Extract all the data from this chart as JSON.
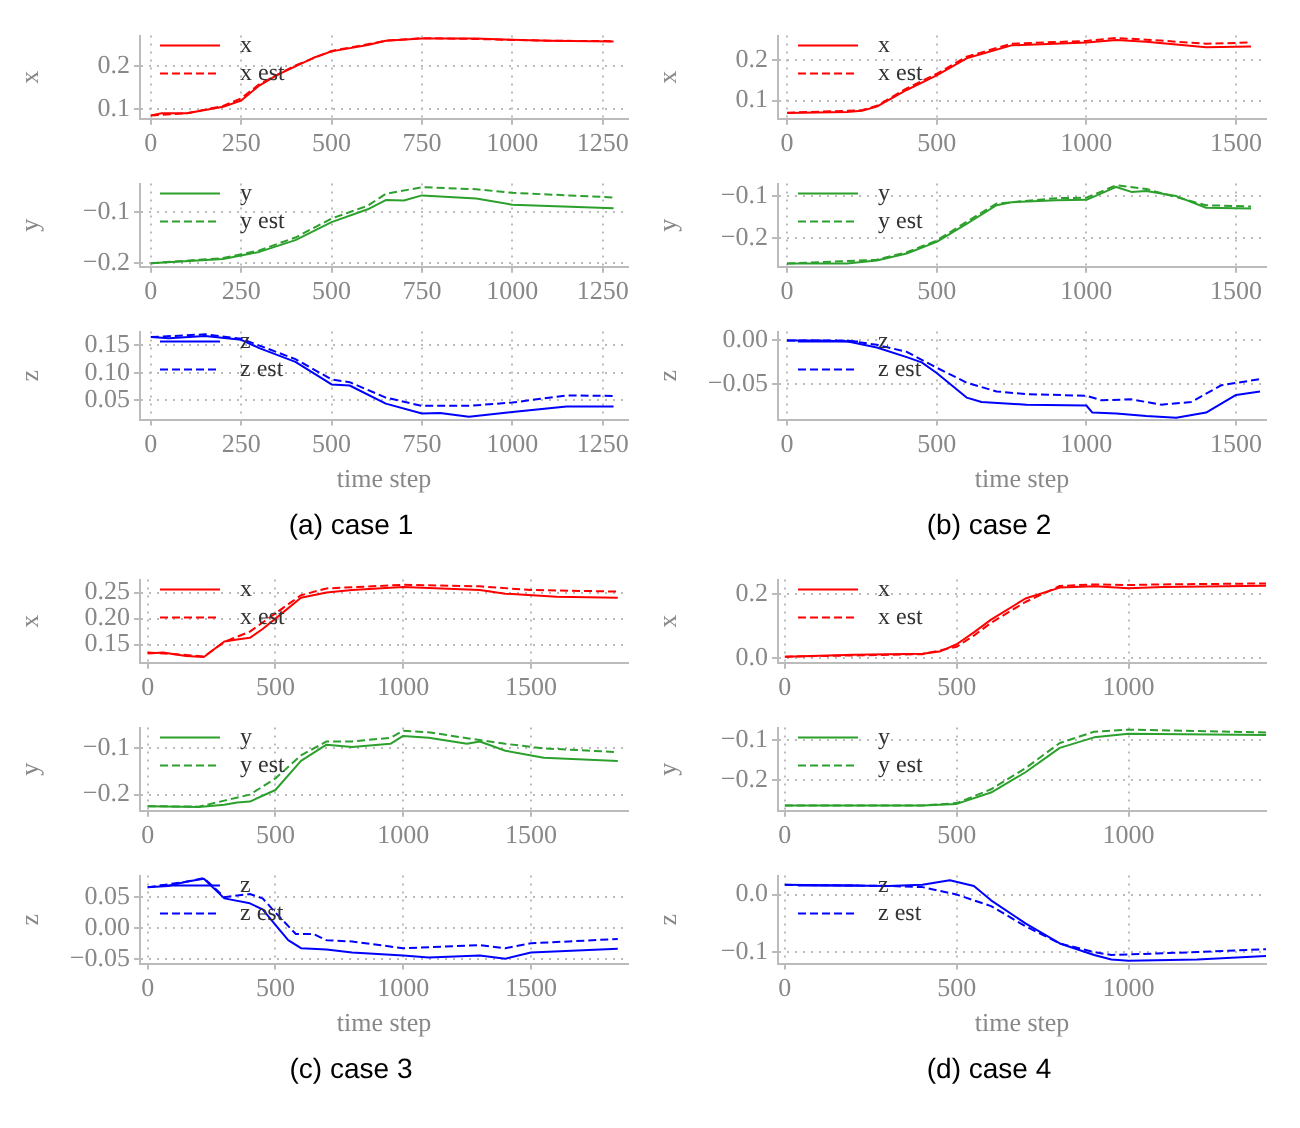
{
  "chart_data": [
    {
      "type": "line",
      "ylabel": "x",
      "xlim": [
        -30,
        1320
      ],
      "xticks": [
        0,
        250,
        500,
        750,
        1000,
        1250
      ],
      "ylim": [
        0.077,
        0.272
      ],
      "yticks": [
        {
          "value": 0.1,
          "label": "0.1"
        },
        {
          "value": 0.2,
          "label": "0.2"
        }
      ],
      "grid": true,
      "legend": "top left",
      "series": [
        {
          "name": "x",
          "color": "#ff0000",
          "line_style": "solid",
          "x": [
            0,
            30,
            100,
            200,
            250,
            300,
            350,
            400,
            450,
            500,
            600,
            650,
            750,
            900,
            1000,
            1100,
            1280
          ],
          "values": [
            0.085,
            0.09,
            0.09,
            0.105,
            0.12,
            0.155,
            0.18,
            0.2,
            0.22,
            0.235,
            0.25,
            0.26,
            0.265,
            0.265,
            0.262,
            0.26,
            0.258
          ]
        },
        {
          "name": "x est",
          "color": "#ff0000",
          "line_style": "dashed",
          "x": [
            0,
            100,
            200,
            250,
            300,
            400,
            500,
            650,
            750,
            900,
            1100,
            1280
          ],
          "values": [
            0.085,
            0.09,
            0.107,
            0.125,
            0.158,
            0.202,
            0.236,
            0.26,
            0.266,
            0.264,
            0.26,
            0.259
          ]
        }
      ]
    },
    {
      "type": "line",
      "ylabel": "y",
      "xlim": [
        -30,
        1320
      ],
      "xticks": [
        0,
        250,
        500,
        750,
        1000,
        1250
      ],
      "ylim": [
        -0.207,
        -0.045
      ],
      "yticks": [
        {
          "value": -0.1,
          "label": "−0.1"
        },
        {
          "value": -0.2,
          "label": "−0.2"
        }
      ],
      "grid": true,
      "legend": "top left",
      "series": [
        {
          "name": "y",
          "color": "#2ca02c",
          "line_style": "solid",
          "x": [
            0,
            200,
            300,
            400,
            500,
            600,
            650,
            700,
            750,
            900,
            1000,
            1280
          ],
          "values": [
            -0.2,
            -0.192,
            -0.178,
            -0.155,
            -0.12,
            -0.095,
            -0.077,
            -0.078,
            -0.068,
            -0.074,
            -0.086,
            -0.093
          ]
        },
        {
          "name": "y est",
          "color": "#2ca02c",
          "line_style": "dashed",
          "x": [
            0,
            200,
            300,
            400,
            500,
            600,
            650,
            750,
            900,
            1000,
            1280
          ],
          "values": [
            -0.2,
            -0.19,
            -0.175,
            -0.15,
            -0.113,
            -0.088,
            -0.065,
            -0.052,
            -0.056,
            -0.063,
            -0.072
          ]
        }
      ]
    },
    {
      "type": "line",
      "ylabel": "z",
      "xlabel": "time step",
      "annotations": [
        "(a) case 1"
      ],
      "xlim": [
        -30,
        1320
      ],
      "xticks": [
        0,
        250,
        500,
        750,
        1000,
        1250
      ],
      "ylim": [
        0.015,
        0.175
      ],
      "yticks": [
        {
          "value": 0.05,
          "label": "0.05"
        },
        {
          "value": 0.1,
          "label": "0.10"
        },
        {
          "value": 0.15,
          "label": "0.15"
        }
      ],
      "grid": true,
      "legend": "top left",
      "series": [
        {
          "name": "z",
          "color": "#0000ff",
          "line_style": "solid",
          "x": [
            0,
            50,
            150,
            250,
            300,
            400,
            500,
            550,
            650,
            750,
            800,
            880,
            1000,
            1150,
            1280
          ],
          "values": [
            0.165,
            0.163,
            0.167,
            0.16,
            0.145,
            0.12,
            0.079,
            0.077,
            0.044,
            0.026,
            0.027,
            0.02,
            0.029,
            0.039,
            0.039
          ]
        },
        {
          "name": "z est",
          "color": "#0000ff",
          "line_style": "dashed",
          "x": [
            0,
            150,
            250,
            400,
            500,
            550,
            650,
            750,
            880,
            1000,
            1150,
            1280
          ],
          "values": [
            0.165,
            0.17,
            0.162,
            0.125,
            0.088,
            0.083,
            0.055,
            0.04,
            0.04,
            0.046,
            0.059,
            0.058
          ]
        }
      ]
    },
    {
      "type": "line",
      "ylabel": "x",
      "xlim": [
        -30,
        1600
      ],
      "xticks": [
        0,
        500,
        1000,
        1500
      ],
      "ylim": [
        0.055,
        0.26
      ],
      "yticks": [
        {
          "value": 0.1,
          "label": "0.1"
        },
        {
          "value": 0.2,
          "label": "0.2"
        }
      ],
      "grid": true,
      "legend": "top left",
      "series": [
        {
          "name": "x",
          "color": "#ff0000",
          "line_style": "solid",
          "x": [
            0,
            200,
            250,
            300,
            400,
            500,
            600,
            750,
            1000,
            1100,
            1200,
            1400,
            1550
          ],
          "values": [
            0.069,
            0.072,
            0.075,
            0.085,
            0.126,
            0.162,
            0.204,
            0.236,
            0.243,
            0.249,
            0.245,
            0.231,
            0.233
          ]
        },
        {
          "name": "x est",
          "color": "#ff0000",
          "line_style": "dashed",
          "x": [
            0,
            250,
            300,
            400,
            500,
            600,
            750,
            1000,
            1100,
            1200,
            1400,
            1550
          ],
          "values": [
            0.07,
            0.076,
            0.087,
            0.13,
            0.166,
            0.208,
            0.24,
            0.247,
            0.254,
            0.25,
            0.24,
            0.243
          ]
        }
      ]
    },
    {
      "type": "line",
      "ylabel": "y",
      "xlim": [
        -30,
        1600
      ],
      "xticks": [
        0,
        500,
        1000,
        1500
      ],
      "ylim": [
        -0.27,
        -0.07
      ],
      "yticks": [
        {
          "value": -0.1,
          "label": "−0.1"
        },
        {
          "value": -0.2,
          "label": "−0.2"
        }
      ],
      "grid": true,
      "legend": "top left",
      "series": [
        {
          "name": "y",
          "color": "#2ca02c",
          "line_style": "solid",
          "x": [
            0,
            200,
            300,
            400,
            500,
            600,
            700,
            750,
            900,
            1000,
            1100,
            1150,
            1200,
            1300,
            1400,
            1550
          ],
          "values": [
            -0.262,
            -0.262,
            -0.255,
            -0.238,
            -0.21,
            -0.167,
            -0.122,
            -0.115,
            -0.11,
            -0.109,
            -0.078,
            -0.09,
            -0.088,
            -0.1,
            -0.128,
            -0.13
          ]
        },
        {
          "name": "y est",
          "color": "#2ca02c",
          "line_style": "dashed",
          "x": [
            0,
            300,
            400,
            500,
            600,
            700,
            900,
            1000,
            1100,
            1200,
            1400,
            1550
          ],
          "values": [
            -0.262,
            -0.253,
            -0.235,
            -0.207,
            -0.162,
            -0.118,
            -0.105,
            -0.104,
            -0.074,
            -0.083,
            -0.122,
            -0.125
          ]
        }
      ]
    },
    {
      "type": "line",
      "ylabel": "z",
      "xlabel": "time step",
      "annotations": [
        "(b) case 2"
      ],
      "xlim": [
        -30,
        1600
      ],
      "xticks": [
        0,
        500,
        1000,
        1500
      ],
      "ylim": [
        -0.09,
        0.01
      ],
      "yticks": [
        {
          "value": 0,
          "label": "0.00"
        },
        {
          "value": -0.05,
          "label": "−0.05"
        }
      ],
      "grid": true,
      "legend": "top left",
      "series": [
        {
          "name": "z",
          "color": "#0000ff",
          "line_style": "solid",
          "x": [
            0,
            100,
            200,
            300,
            400,
            450,
            500,
            600,
            650,
            800,
            1000,
            1020,
            1100,
            1200,
            1300,
            1400,
            1500,
            1580
          ],
          "values": [
            0,
            0,
            -0.001,
            -0.008,
            -0.019,
            -0.025,
            -0.037,
            -0.065,
            -0.07,
            -0.073,
            -0.074,
            -0.082,
            -0.083,
            -0.086,
            -0.088,
            -0.082,
            -0.062,
            -0.058
          ]
        },
        {
          "name": "z est",
          "color": "#0000ff",
          "line_style": "dashed",
          "x": [
            0,
            200,
            300,
            400,
            500,
            600,
            700,
            800,
            1000,
            1050,
            1150,
            1250,
            1350,
            1450,
            1580
          ],
          "values": [
            0,
            0,
            -0.005,
            -0.013,
            -0.031,
            -0.048,
            -0.058,
            -0.061,
            -0.063,
            -0.068,
            -0.067,
            -0.073,
            -0.07,
            -0.051,
            -0.044
          ]
        }
      ]
    },
    {
      "type": "line",
      "ylabel": "x",
      "xlim": [
        -30,
        1880
      ],
      "xticks": [
        0,
        500,
        1000,
        1500
      ],
      "ylim": [
        0.115,
        0.275
      ],
      "yticks": [
        {
          "value": 0.15,
          "label": "0.15"
        },
        {
          "value": 0.2,
          "label": "0.20"
        },
        {
          "value": 0.25,
          "label": "0.25"
        }
      ],
      "grid": true,
      "legend": "top left",
      "series": [
        {
          "name": "x",
          "color": "#ff0000",
          "line_style": "solid",
          "x": [
            0,
            60,
            150,
            220,
            300,
            350,
            400,
            450,
            500,
            600,
            700,
            800,
            1000,
            1300,
            1400,
            1600,
            1840
          ],
          "values": [
            0.133,
            0.135,
            0.128,
            0.126,
            0.156,
            0.16,
            0.163,
            0.18,
            0.2,
            0.24,
            0.25,
            0.255,
            0.261,
            0.255,
            0.248,
            0.242,
            0.24
          ]
        },
        {
          "name": "x est",
          "color": "#ff0000",
          "line_style": "dashed",
          "x": [
            0,
            150,
            220,
            300,
            400,
            500,
            600,
            700,
            1000,
            1300,
            1500,
            1840
          ],
          "values": [
            0.135,
            0.13,
            0.127,
            0.155,
            0.175,
            0.21,
            0.245,
            0.258,
            0.265,
            0.262,
            0.255,
            0.252
          ]
        }
      ]
    },
    {
      "type": "line",
      "ylabel": "y",
      "xlim": [
        -30,
        1880
      ],
      "xticks": [
        0,
        500,
        1000,
        1500
      ],
      "ylim": [
        -0.235,
        -0.055
      ],
      "yticks": [
        {
          "value": -0.1,
          "label": "−0.1"
        },
        {
          "value": -0.2,
          "label": "−0.2"
        }
      ],
      "grid": true,
      "legend": "top left",
      "series": [
        {
          "name": "y",
          "color": "#2ca02c",
          "line_style": "solid",
          "x": [
            0,
            200,
            300,
            350,
            400,
            500,
            600,
            700,
            800,
            950,
            1000,
            1100,
            1250,
            1300,
            1400,
            1550,
            1840
          ],
          "values": [
            -0.225,
            -0.227,
            -0.222,
            -0.217,
            -0.215,
            -0.19,
            -0.127,
            -0.092,
            -0.097,
            -0.09,
            -0.073,
            -0.077,
            -0.09,
            -0.085,
            -0.105,
            -0.12,
            -0.127
          ]
        },
        {
          "name": "y est",
          "color": "#2ca02c",
          "line_style": "dashed",
          "x": [
            0,
            200,
            300,
            400,
            500,
            600,
            700,
            800,
            950,
            1000,
            1100,
            1250,
            1400,
            1550,
            1840
          ],
          "values": [
            -0.225,
            -0.226,
            -0.213,
            -0.2,
            -0.165,
            -0.115,
            -0.085,
            -0.085,
            -0.077,
            -0.062,
            -0.065,
            -0.078,
            -0.09,
            -0.1,
            -0.108
          ]
        }
      ]
    },
    {
      "type": "line",
      "ylabel": "z",
      "xlabel": "time step",
      "annotations": [
        "(c) case 3"
      ],
      "xlim": [
        -30,
        1880
      ],
      "xticks": [
        0,
        500,
        1000,
        1500
      ],
      "ylim": [
        -0.058,
        0.085
      ],
      "yticks": [
        {
          "value": 0.05,
          "label": "0.05"
        },
        {
          "value": 0,
          "label": "0.00"
        },
        {
          "value": -0.05,
          "label": "−0.05"
        }
      ],
      "grid": true,
      "legend": "top left",
      "series": [
        {
          "name": "z",
          "color": "#0000ff",
          "line_style": "solid",
          "x": [
            0,
            80,
            150,
            220,
            300,
            400,
            450,
            500,
            550,
            600,
            700,
            800,
            1000,
            1100,
            1300,
            1400,
            1500,
            1840
          ],
          "values": [
            0.066,
            0.068,
            0.075,
            0.08,
            0.048,
            0.04,
            0.03,
            0.005,
            -0.02,
            -0.033,
            -0.035,
            -0.04,
            -0.045,
            -0.048,
            -0.045,
            -0.05,
            -0.04,
            -0.034
          ]
        },
        {
          "name": "z est",
          "color": "#0000ff",
          "line_style": "dashed",
          "x": [
            0,
            150,
            220,
            300,
            400,
            450,
            500,
            580,
            650,
            700,
            800,
            1000,
            1300,
            1400,
            1500,
            1840
          ],
          "values": [
            0.066,
            0.075,
            0.081,
            0.05,
            0.055,
            0.048,
            0.025,
            -0.01,
            -0.01,
            -0.02,
            -0.022,
            -0.033,
            -0.028,
            -0.033,
            -0.025,
            -0.018
          ]
        }
      ]
    },
    {
      "type": "line",
      "ylabel": "x",
      "xlim": [
        -20,
        1400
      ],
      "xticks": [
        0,
        500,
        1000
      ],
      "ylim": [
        -0.015,
        0.245
      ],
      "yticks": [
        {
          "value": 0,
          "label": "0.0"
        },
        {
          "value": 0.2,
          "label": "0.2"
        }
      ],
      "grid": true,
      "legend": "top left",
      "series": [
        {
          "name": "x",
          "color": "#ff0000",
          "line_style": "solid",
          "x": [
            0,
            200,
            400,
            450,
            500,
            550,
            600,
            700,
            800,
            900,
            1000,
            1100,
            1400
          ],
          "values": [
            0.004,
            0.01,
            0.013,
            0.02,
            0.043,
            0.08,
            0.12,
            0.186,
            0.22,
            0.224,
            0.218,
            0.222,
            0.226
          ]
        },
        {
          "name": "x est",
          "color": "#ff0000",
          "line_style": "dashed",
          "x": [
            0,
            400,
            500,
            550,
            600,
            700,
            800,
            900,
            1000,
            1100,
            1400
          ],
          "values": [
            0.004,
            0.012,
            0.035,
            0.07,
            0.11,
            0.175,
            0.225,
            0.23,
            0.228,
            0.23,
            0.233
          ]
        }
      ]
    },
    {
      "type": "line",
      "ylabel": "y",
      "xlim": [
        -20,
        1400
      ],
      "xticks": [
        0,
        500,
        1000
      ],
      "ylim": [
        -0.275,
        -0.07
      ],
      "yticks": [
        {
          "value": -0.1,
          "label": "−0.1"
        },
        {
          "value": -0.2,
          "label": "−0.2"
        }
      ],
      "grid": true,
      "legend": "top left",
      "series": [
        {
          "name": "y",
          "color": "#2ca02c",
          "line_style": "solid",
          "x": [
            0,
            400,
            500,
            600,
            700,
            800,
            900,
            1000,
            1400
          ],
          "values": [
            -0.262,
            -0.262,
            -0.258,
            -0.23,
            -0.18,
            -0.12,
            -0.094,
            -0.085,
            -0.088
          ]
        },
        {
          "name": "y est",
          "color": "#2ca02c",
          "line_style": "dashed",
          "x": [
            0,
            400,
            500,
            600,
            700,
            800,
            900,
            1000,
            1400
          ],
          "values": [
            -0.262,
            -0.262,
            -0.256,
            -0.222,
            -0.17,
            -0.108,
            -0.08,
            -0.075,
            -0.082
          ]
        }
      ]
    },
    {
      "type": "line",
      "ylabel": "z",
      "xlabel": "time step",
      "annotations": [
        "(d) case 4"
      ],
      "xlim": [
        -20,
        1400
      ],
      "xticks": [
        0,
        500,
        1000
      ],
      "ylim": [
        -0.12,
        0.033
      ],
      "yticks": [
        {
          "value": 0,
          "label": "0.0"
        },
        {
          "value": -0.1,
          "label": "−0.1"
        }
      ],
      "grid": true,
      "legend": "top left",
      "series": [
        {
          "name": "z",
          "color": "#0000ff",
          "line_style": "solid",
          "x": [
            0,
            300,
            400,
            480,
            550,
            600,
            700,
            800,
            900,
            950,
            1000,
            1200,
            1400
          ],
          "values": [
            0.017,
            0.015,
            0.017,
            0.025,
            0.015,
            -0.01,
            -0.05,
            -0.085,
            -0.105,
            -0.113,
            -0.115,
            -0.113,
            -0.107
          ]
        },
        {
          "name": "z est",
          "color": "#0000ff",
          "line_style": "dashed",
          "x": [
            0,
            300,
            400,
            500,
            600,
            700,
            800,
            900,
            950,
            1000,
            1200,
            1400
          ],
          "values": [
            0.017,
            0.015,
            0.013,
            0,
            -0.02,
            -0.055,
            -0.085,
            -0.1,
            -0.105,
            -0.104,
            -0.1,
            -0.095
          ]
        }
      ]
    }
  ]
}
